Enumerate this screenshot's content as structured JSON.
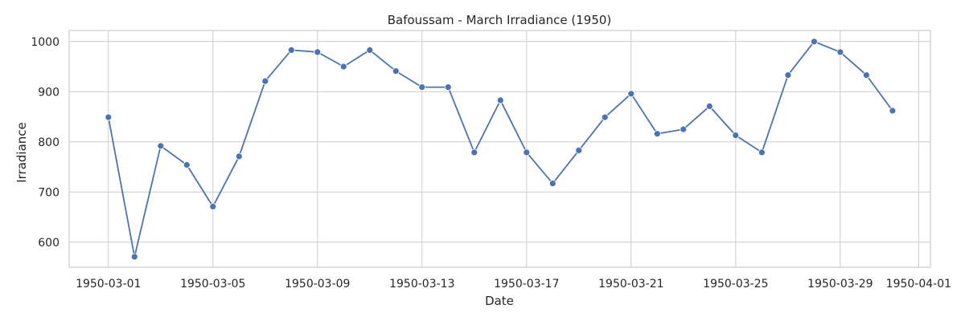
{
  "chart_data": {
    "type": "line",
    "title": "Bafoussam - March Irradiance (1950)",
    "xlabel": "Date",
    "ylabel": "Irradiance",
    "xlim": [
      "1950-02-28",
      "1950-04-01"
    ],
    "ylim": [
      550,
      1022
    ],
    "x_ticks": [
      "1950-03-01",
      "1950-03-05",
      "1950-03-09",
      "1950-03-13",
      "1950-03-17",
      "1950-03-21",
      "1950-03-25",
      "1950-03-29",
      "1950-04-01"
    ],
    "y_ticks": [
      600,
      700,
      800,
      900,
      1000
    ],
    "grid": true,
    "series": [
      {
        "color": "#4c72b0",
        "marker": "circle",
        "x": [
          "1950-03-01",
          "1950-03-02",
          "1950-03-03",
          "1950-03-04",
          "1950-03-05",
          "1950-03-06",
          "1950-03-07",
          "1950-03-08",
          "1950-03-09",
          "1950-03-10",
          "1950-03-11",
          "1950-03-12",
          "1950-03-13",
          "1950-03-14",
          "1950-03-15",
          "1950-03-16",
          "1950-03-17",
          "1950-03-18",
          "1950-03-19",
          "1950-03-20",
          "1950-03-21",
          "1950-03-22",
          "1950-03-23",
          "1950-03-24",
          "1950-03-25",
          "1950-03-26",
          "1950-03-27",
          "1950-03-28",
          "1950-03-29",
          "1950-03-30",
          "1950-03-31"
        ],
        "values": [
          849,
          571,
          792,
          754,
          671,
          771,
          921,
          983,
          979,
          950,
          983,
          941,
          909,
          909,
          779,
          883,
          779,
          717,
          783,
          849,
          896,
          816,
          825,
          871,
          813,
          779,
          933,
          1000,
          979,
          933,
          862
        ]
      }
    ]
  }
}
